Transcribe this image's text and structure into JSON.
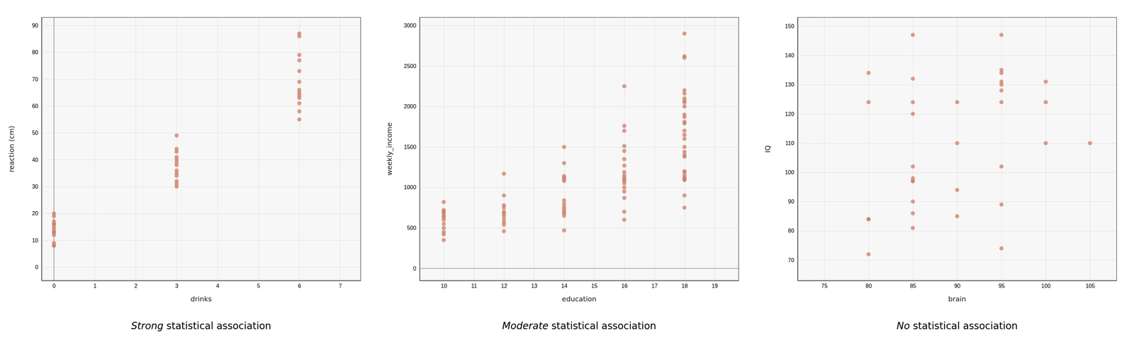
{
  "chart_data": [
    {
      "type": "scatter",
      "title": "Strong statistical association",
      "xlabel": "drinks",
      "ylabel": "reaction (cm)",
      "xlim": [
        -0.3,
        7.5
      ],
      "ylim": [
        -5,
        93
      ],
      "xticks": [
        0,
        1,
        2,
        3,
        4,
        5,
        6,
        7
      ],
      "yticks": [
        0,
        10,
        20,
        30,
        40,
        50,
        60,
        70,
        80,
        90
      ],
      "x": [
        0,
        0,
        0,
        0,
        0,
        0,
        0,
        0,
        0,
        0,
        0,
        0,
        0,
        3,
        3,
        3,
        3,
        3,
        3,
        3,
        3,
        3,
        3,
        3,
        3,
        3,
        6,
        6,
        6,
        6,
        6,
        6,
        6,
        6,
        6,
        6,
        6,
        6,
        6
      ],
      "y": [
        8,
        8,
        9,
        12,
        13,
        13,
        14,
        15,
        16,
        16,
        17,
        19,
        20,
        30,
        31,
        32,
        34,
        35,
        36,
        38,
        39,
        40,
        41,
        43,
        44,
        49,
        55,
        58,
        61,
        63,
        64,
        65,
        66,
        69,
        73,
        77,
        79,
        86,
        87
      ],
      "color": "#cd7f65",
      "grid": true,
      "vline": 0
    },
    {
      "type": "scatter",
      "title": "Moderate statistical association",
      "xlabel": "education",
      "ylabel": "weekly_income",
      "xlim": [
        9.2,
        19.8
      ],
      "ylim": [
        -150,
        3100
      ],
      "xticks": [
        10,
        11,
        12,
        13,
        14,
        15,
        16,
        17,
        18,
        19
      ],
      "yticks": [
        0,
        500,
        1000,
        1500,
        2000,
        2500,
        3000
      ],
      "x": [
        10,
        10,
        10,
        10,
        10,
        10,
        10,
        10,
        10,
        10,
        10,
        10,
        12,
        12,
        12,
        12,
        12,
        12,
        12,
        12,
        12,
        12,
        12,
        14,
        14,
        14,
        14,
        14,
        14,
        14,
        14,
        14,
        14,
        14,
        14,
        14,
        14,
        16,
        16,
        16,
        16,
        16,
        16,
        16,
        16,
        16,
        16,
        16,
        16,
        16,
        16,
        16,
        16,
        16,
        16,
        18,
        18,
        18,
        18,
        18,
        18,
        18,
        18,
        18,
        18,
        18,
        18,
        18,
        18,
        18,
        18,
        18,
        18,
        18,
        18,
        18,
        18,
        18,
        18,
        18,
        18,
        18,
        18,
        18
      ],
      "y": [
        350,
        420,
        450,
        500,
        550,
        600,
        630,
        650,
        680,
        700,
        720,
        820,
        460,
        540,
        570,
        610,
        650,
        680,
        700,
        750,
        780,
        900,
        1170,
        470,
        650,
        680,
        700,
        730,
        760,
        800,
        840,
        1080,
        1100,
        1120,
        1140,
        1300,
        1500,
        600,
        700,
        870,
        950,
        1000,
        1050,
        1080,
        1100,
        1120,
        1150,
        1190,
        1270,
        1350,
        1450,
        1510,
        1700,
        1760,
        2250,
        750,
        900,
        1090,
        1100,
        1110,
        1120,
        1150,
        1190,
        1200,
        1380,
        1400,
        1440,
        1500,
        1600,
        1650,
        1700,
        1790,
        1810,
        1870,
        1900,
        2000,
        2050,
        2070,
        2100,
        2160,
        2200,
        2600,
        2620,
        2900
      ],
      "color": "#cd7f65",
      "grid": true,
      "hline": 0
    },
    {
      "type": "scatter",
      "title": "No statistical association",
      "xlabel": "brain",
      "ylabel": "IQ",
      "xlim": [
        72,
        108
      ],
      "ylim": [
        63,
        153
      ],
      "xticks": [
        75,
        80,
        85,
        90,
        95,
        100,
        105
      ],
      "yticks": [
        70,
        80,
        90,
        100,
        110,
        120,
        130,
        140,
        150
      ],
      "x": [
        80,
        80,
        80,
        80,
        80,
        85,
        85,
        85,
        85,
        85,
        85,
        85,
        85,
        85,
        85,
        85,
        90,
        90,
        90,
        90,
        95,
        95,
        95,
        95,
        95,
        95,
        95,
        95,
        95,
        95,
        100,
        100,
        100,
        105
      ],
      "y": [
        72,
        84,
        84,
        124,
        134,
        81,
        86,
        90,
        97,
        97,
        98,
        102,
        120,
        124,
        132,
        147,
        85,
        94,
        110,
        124,
        74,
        89,
        102,
        124,
        128,
        130,
        131,
        134,
        135,
        147,
        110,
        124,
        131,
        110
      ],
      "color": "#cd7f65",
      "grid": true
    }
  ]
}
